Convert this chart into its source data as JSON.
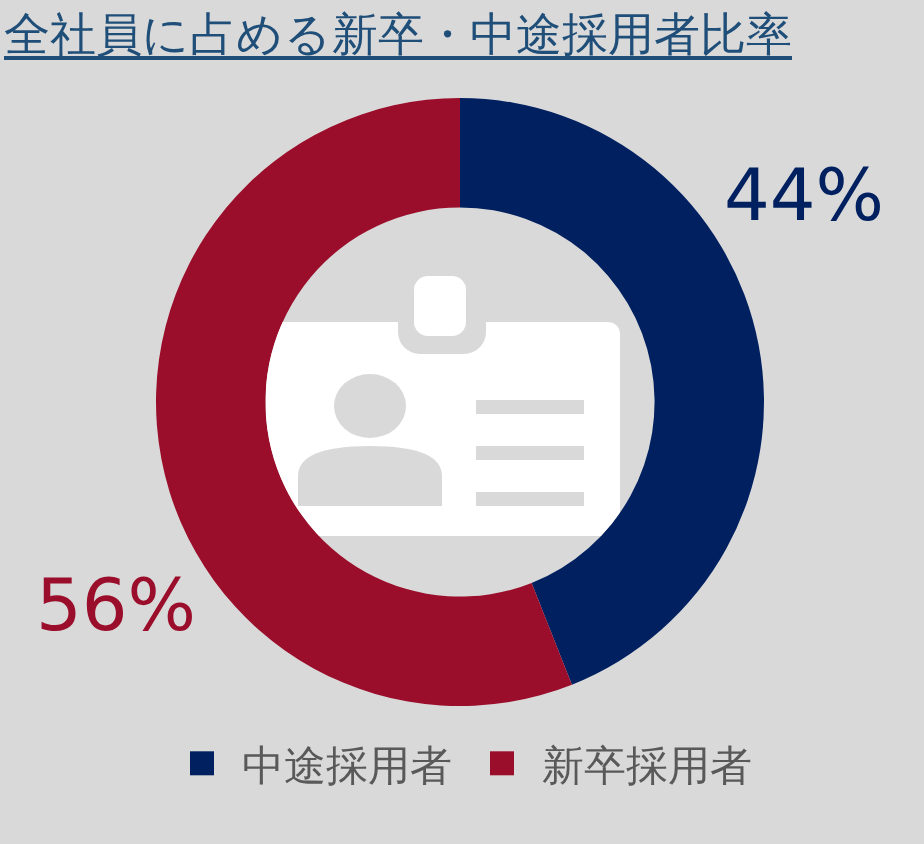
{
  "chart_data": {
    "type": "donut",
    "title": "全社員に占める新卒・中途採用者比率",
    "categories": [
      "中途採用者",
      "新卒採用者"
    ],
    "values": [
      44,
      56
    ],
    "colors": [
      "#002060",
      "#9b0e2b"
    ],
    "value_labels": [
      "44%",
      "56%"
    ],
    "legend": "bottom"
  }
}
